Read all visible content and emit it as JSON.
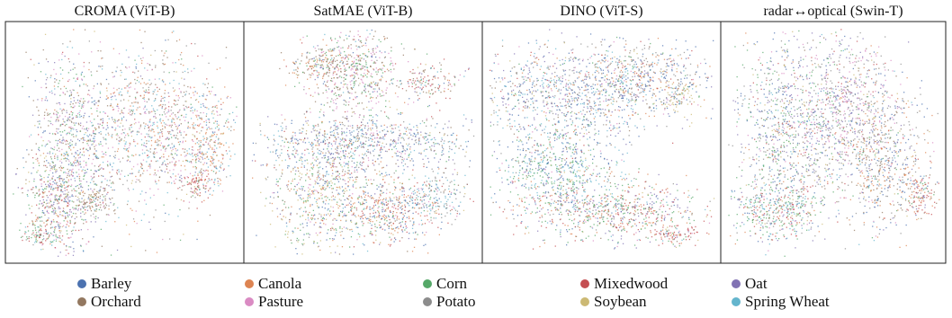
{
  "chart_data": {
    "type": "scatter",
    "description_kind": "UMAP-style embedding projections (qualitative clusters)",
    "panels": [
      {
        "title": "CROMA (ViT-B)"
      },
      {
        "title": "SatMAE (ViT-B)"
      },
      {
        "title": "DINO (ViT-S)"
      },
      {
        "title": "radar↔optical (Swin-T)"
      }
    ],
    "legend": {
      "placement": "bottom",
      "entries": [
        {
          "name": "Barley",
          "color": "#4c72b0"
        },
        {
          "name": "Canola",
          "color": "#dd8452"
        },
        {
          "name": "Corn",
          "color": "#55a868"
        },
        {
          "name": "Mixedwood",
          "color": "#c44e52"
        },
        {
          "name": "Oat",
          "color": "#8172b3"
        },
        {
          "name": "Orchard",
          "color": "#937860"
        },
        {
          "name": "Pasture",
          "color": "#da8bc3"
        },
        {
          "name": "Potato",
          "color": "#8c8c8c"
        },
        {
          "name": "Soybean",
          "color": "#ccb974"
        },
        {
          "name": "Spring Wheat",
          "color": "#64b5cd"
        }
      ]
    },
    "axes": "hidden",
    "grid": false
  }
}
